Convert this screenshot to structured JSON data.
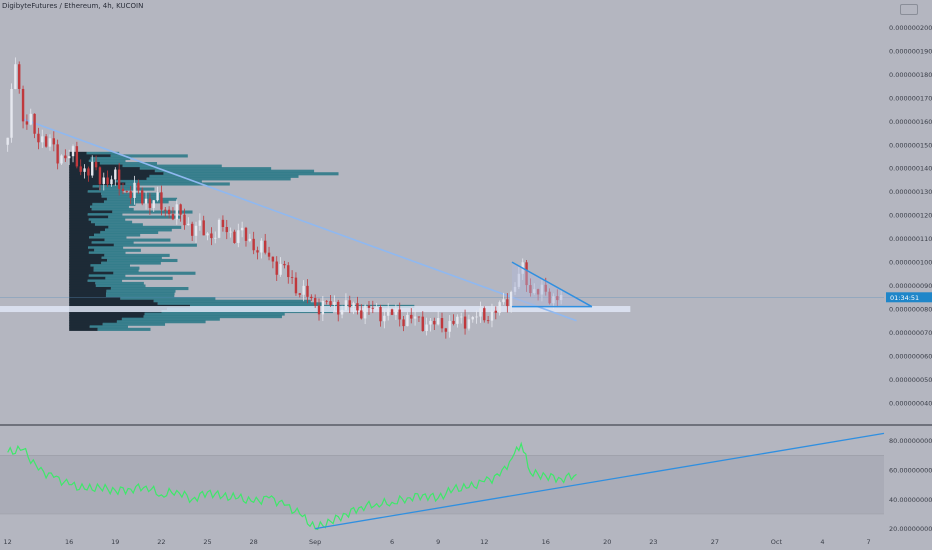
{
  "header": {
    "title": "DigibyteFutures / Ethereum, 4h, KUCOIN"
  },
  "colors": {
    "background": "#b4b6c0",
    "rsi_band": "#a8aab4",
    "candle_up": "#e6e8ef",
    "candle_down": "#c0383c",
    "profile_dark": "#1d2a36",
    "profile_teal": "#2e7a88",
    "trendline": "#8fb8f0",
    "triangle": "#2f8fe0",
    "rsi_line": "#3ee86a",
    "support_band": "#dfe6f6",
    "price_badge": "#1f86c9"
  },
  "current_price_label": "01:34:51",
  "chart_data": [
    {
      "type": "candlestick",
      "title": "DigibyteFutures / Ethereum, 4h, KUCOIN",
      "y_ticks": [
        "0.0000002000",
        "0.0000001900",
        "0.0000001800",
        "0.0000001700",
        "0.0000001600",
        "0.0000001500",
        "0.0000001400",
        "0.0000001300",
        "0.0000001200",
        "0.0000001100",
        "0.0000001000",
        "0.0000000900",
        "0.0000000800",
        "0.0000000700",
        "0.0000000600",
        "0.0000000500",
        "0.0000000400"
      ],
      "y_tick_values": [
        2e-07,
        1.9e-07,
        1.8e-07,
        1.7e-07,
        1.6e-07,
        1.5e-07,
        1.4e-07,
        1.3e-07,
        1.2e-07,
        1.1e-07,
        1e-07,
        9e-08,
        8e-08,
        7e-08,
        6e-08,
        5e-08,
        4e-08
      ],
      "ylim": [
        3.1e-08,
        2.1e-07
      ],
      "x_ticks": [
        "12",
        "16",
        "19",
        "22",
        "25",
        "28",
        "Sep",
        "6",
        "9",
        "12",
        "16",
        "20",
        "23",
        "27",
        "Oct",
        "4",
        "7"
      ],
      "x_tick_days": [
        0,
        4,
        7,
        10,
        13,
        16,
        20,
        25,
        28,
        31,
        35,
        39,
        42,
        46,
        50,
        53,
        56
      ],
      "x_range_days": [
        -0.5,
        57
      ],
      "price_path": [
        [
          0,
          1.5e-07
        ],
        [
          0.5,
          1.9e-07
        ],
        [
          1,
          1.6e-07
        ],
        [
          2,
          1.55e-07
        ],
        [
          3,
          1.47e-07
        ],
        [
          4,
          1.45e-07
        ],
        [
          5,
          1.4e-07
        ],
        [
          6,
          1.37e-07
        ],
        [
          7,
          1.34e-07
        ],
        [
          8,
          1.3e-07
        ],
        [
          9,
          1.27e-07
        ],
        [
          10,
          1.24e-07
        ],
        [
          11,
          1.2e-07
        ],
        [
          12,
          1.15e-07
        ],
        [
          13,
          1.12e-07
        ],
        [
          14,
          1.14e-07
        ],
        [
          15,
          1.12e-07
        ],
        [
          16,
          1.08e-07
        ],
        [
          17,
          1.02e-07
        ],
        [
          18,
          9.6e-08
        ],
        [
          19,
          8.8e-08
        ],
        [
          20,
          8.2e-08
        ],
        [
          22,
          8.1e-08
        ],
        [
          24,
          7.9e-08
        ],
        [
          26,
          7.6e-08
        ],
        [
          28,
          7.3e-08
        ],
        [
          29,
          7.4e-08
        ],
        [
          30,
          7.6e-08
        ],
        [
          31,
          7.7e-08
        ],
        [
          32,
          8e-08
        ],
        [
          33,
          9e-08
        ],
        [
          33.4,
          9.7e-08
        ],
        [
          34,
          8.9e-08
        ],
        [
          35,
          8.6e-08
        ],
        [
          36,
          8.5e-08
        ]
      ],
      "downtrend_line": [
        [
          1,
          1.61e-07
        ],
        [
          37,
          7.5e-08
        ]
      ],
      "triangle": {
        "top": [
          [
            32.8,
            1e-07
          ],
          [
            38,
            8.1e-08
          ]
        ],
        "bottom": [
          [
            32.8,
            8.1e-08
          ],
          [
            38,
            8.1e-08
          ]
        ]
      },
      "support_level": 8e-08,
      "current_price": 8.5e-08,
      "volume_profile": {
        "start_day": 4,
        "peak_price": 8.1e-08,
        "second_peak_price": 1.38e-07
      }
    },
    {
      "type": "line",
      "title": "",
      "y_ticks": [
        "80.0000000000",
        "60.0000000000",
        "40.0000000000",
        "20.0000000000"
      ],
      "y_tick_values": [
        80,
        60,
        40,
        20
      ],
      "ylim": [
        15,
        90
      ],
      "band": [
        30,
        70
      ],
      "rsi": [
        [
          0,
          72
        ],
        [
          1,
          74
        ],
        [
          2,
          60
        ],
        [
          3,
          55
        ],
        [
          4,
          50
        ],
        [
          5,
          47
        ],
        [
          6,
          48
        ],
        [
          7,
          46
        ],
        [
          8,
          47
        ],
        [
          9,
          49
        ],
        [
          10,
          43
        ],
        [
          11,
          46
        ],
        [
          12,
          40
        ],
        [
          13,
          45
        ],
        [
          14,
          42
        ],
        [
          15,
          41
        ],
        [
          16,
          38
        ],
        [
          17,
          41
        ],
        [
          18,
          36
        ],
        [
          19,
          30
        ],
        [
          20,
          20
        ],
        [
          21,
          25
        ],
        [
          22,
          30
        ],
        [
          23,
          35
        ],
        [
          24,
          37
        ],
        [
          25,
          38
        ],
        [
          26,
          41
        ],
        [
          27,
          43
        ],
        [
          28,
          41
        ],
        [
          29,
          47
        ],
        [
          30,
          48
        ],
        [
          31,
          52
        ],
        [
          32,
          56
        ],
        [
          32.8,
          68
        ],
        [
          33.4,
          78
        ],
        [
          34,
          58
        ],
        [
          35,
          56
        ],
        [
          36,
          54
        ],
        [
          37,
          57
        ]
      ],
      "trendline": [
        [
          20,
          20
        ],
        [
          57,
          85
        ]
      ]
    }
  ]
}
